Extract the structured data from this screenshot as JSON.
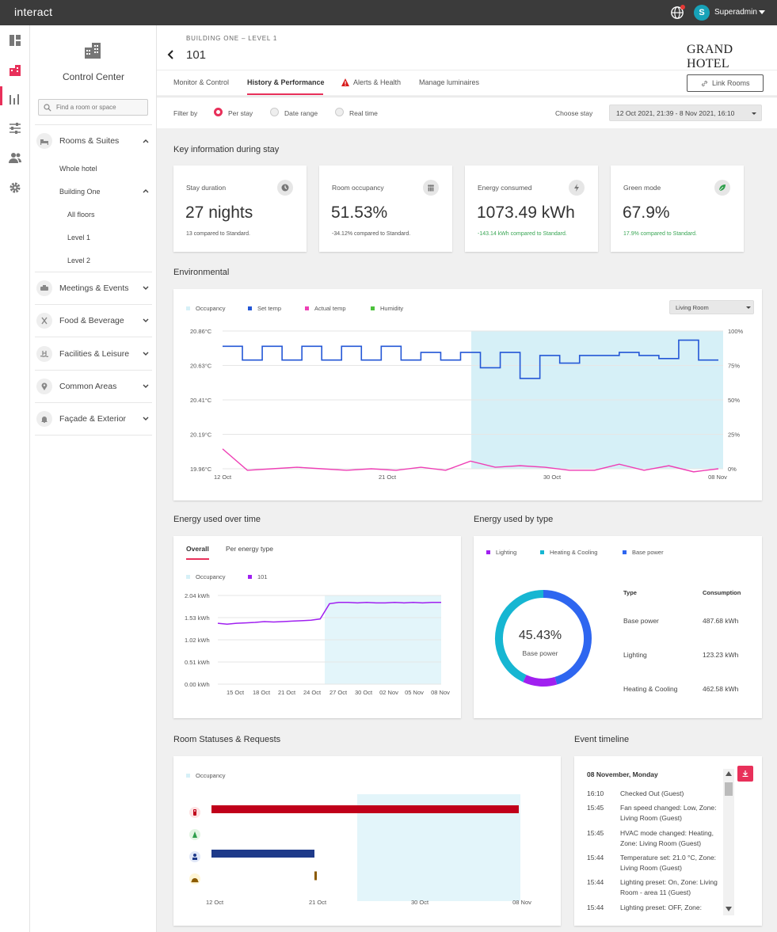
{
  "app": {
    "name": "interact",
    "user_initial": "S",
    "user_name": "Superadmin"
  },
  "sidebar": {
    "title": "Control Center",
    "search_placeholder": "Find a room or space",
    "items": [
      {
        "label": "Rooms & Suites",
        "icon": "bed-icon"
      },
      {
        "label": "Meetings & Events",
        "icon": "meeting-icon"
      },
      {
        "label": "Food & Beverage",
        "icon": "cutlery-icon"
      },
      {
        "label": "Facilities & Leisure",
        "icon": "pool-icon"
      },
      {
        "label": "Common Areas",
        "icon": "location-pin-icon"
      },
      {
        "label": "Façade & Exterior",
        "icon": "bell-icon"
      }
    ],
    "sub_items": [
      "Whole hotel",
      "Building One",
      "All floors",
      "Level 1",
      "Level 2"
    ]
  },
  "header": {
    "breadcrumb": "BUILDING ONE – LEVEL 1",
    "room": "101",
    "logo": "GRAND HOTEL",
    "tabs": [
      "Monitor & Control",
      "History & Performance",
      "Alerts & Health",
      "Manage luminaires"
    ],
    "active_tab": "History & Performance",
    "link_rooms": "Link Rooms"
  },
  "filter": {
    "label": "Filter by",
    "options": [
      "Per stay",
      "Date range",
      "Real time"
    ],
    "selected": "Per stay",
    "choose_stay_label": "Choose stay",
    "stay_value": "12 Oct 2021, 21:39 - 8 Nov 2021, 16:10"
  },
  "key_info": {
    "title": "Key information during stay",
    "cards": [
      {
        "label": "Stay duration",
        "value": "27 nights",
        "note": "13 compared to Standard.",
        "positive": false,
        "icon": "clock-icon"
      },
      {
        "label": "Room occupancy",
        "value": "51.53%",
        "note": "-34.12% compared to Standard.",
        "positive": false,
        "icon": "people-icon"
      },
      {
        "label": "Energy consumed",
        "value": "1073.49 kWh",
        "note": "-143.14 kWh compared to Standard.",
        "positive": true,
        "icon": "lightning-icon"
      },
      {
        "label": "Green mode",
        "value": "67.9%",
        "note": "17.9% compared to Standard.",
        "positive": true,
        "icon": "leaf-icon"
      }
    ]
  },
  "environmental": {
    "title": "Environmental",
    "zone_select": "Living Room",
    "legend": [
      {
        "name": "Occupancy",
        "color": "#d6f0f7"
      },
      {
        "name": "Set temp",
        "color": "#2457d6"
      },
      {
        "name": "Actual temp",
        "color": "#ee3fb5"
      },
      {
        "name": "Humidity",
        "color": "#4cc13c"
      }
    ]
  },
  "energy_time": {
    "title": "Energy used over time",
    "tabs": [
      "Overall",
      "Per energy type"
    ],
    "legend": [
      {
        "name": "Occupancy",
        "color": "#d6f0f7"
      },
      {
        "name": "101",
        "color": "#a020f0"
      }
    ]
  },
  "energy_type": {
    "title": "Energy used by type",
    "legend": [
      {
        "name": "Lighting",
        "color": "#a020f0"
      },
      {
        "name": "Heating & Cooling",
        "color": "#16b6d2"
      },
      {
        "name": "Base power",
        "color": "#2e66f0"
      }
    ],
    "center_value": "45.43%",
    "center_label": "Base power",
    "table_headers": [
      "Type",
      "Consumption"
    ],
    "rows": [
      {
        "type": "Base power",
        "consumption": "487.68 kWh"
      },
      {
        "type": "Lighting",
        "consumption": "123.23 kWh"
      },
      {
        "type": "Heating & Cooling",
        "consumption": "462.58 kWh"
      }
    ]
  },
  "room_status": {
    "title": "Room Statuses & Requests",
    "legend": [
      {
        "name": "Occupancy",
        "color": "#d6f0f7"
      }
    ]
  },
  "event_timeline": {
    "title": "Event timeline",
    "date": "08 November, Monday",
    "events": [
      {
        "time": "16:10",
        "text": "Checked Out (Guest)"
      },
      {
        "time": "15:45",
        "text": "Fan speed changed: Low, Zone: Living Room (Guest)"
      },
      {
        "time": "15:45",
        "text": "HVAC mode changed: Heating, Zone: Living Room (Guest)"
      },
      {
        "time": "15:44",
        "text": "Temperature set: 21.0 °C, Zone: Living Room (Guest)"
      },
      {
        "time": "15:44",
        "text": "Lighting preset: On, Zone: Living Room - area 11 (Guest)"
      },
      {
        "time": "15:44",
        "text": "Lighting preset: OFF, Zone:"
      }
    ]
  },
  "chart_data": [
    {
      "type": "line",
      "x_ticks": [
        "12 Oct",
        "21 Oct",
        "30 Oct",
        "08 Nov"
      ],
      "y_ticks": [
        "20.86°C",
        "20.63°C",
        "20.41°C",
        "20.19°C",
        "19.96°C"
      ],
      "y2_ticks": [
        "100%",
        "75%",
        "50%",
        "25%",
        "0%"
      ],
      "ylim": [
        19.96,
        20.86
      ],
      "occupancy_range": [
        "25 Oct",
        "08 Nov"
      ],
      "series": [
        {
          "name": "Set temp",
          "values": [
            20.76,
            20.67,
            20.76,
            20.67,
            20.76,
            20.67,
            20.76,
            20.67,
            20.76,
            20.67,
            20.72,
            20.67,
            20.72,
            20.62,
            20.72,
            20.55,
            20.7,
            20.65,
            20.7,
            20.7,
            20.72,
            20.7,
            20.68,
            20.8,
            20.67
          ]
        },
        {
          "name": "Actual temp",
          "values": [
            20.09,
            19.95,
            19.96,
            19.97,
            19.96,
            19.95,
            19.96,
            19.95,
            19.97,
            19.95,
            20.01,
            19.97,
            19.98,
            19.97,
            19.95,
            19.95,
            19.99,
            19.95,
            19.98,
            19.94,
            19.96
          ]
        }
      ]
    },
    {
      "type": "line",
      "x_ticks": [
        "15 Oct",
        "18 Oct",
        "21 Oct",
        "24 Oct",
        "27 Oct",
        "30 Oct",
        "02 Nov",
        "05 Nov",
        "08 Nov"
      ],
      "y_ticks": [
        "2.04 kWh",
        "1.53 kWh",
        "1.02 kWh",
        "0.51 kWh",
        "0.00 kWh"
      ],
      "ylim": [
        0,
        2.04
      ],
      "series": [
        {
          "name": "101",
          "values": [
            1.4,
            1.38,
            1.4,
            1.41,
            1.42,
            1.44,
            1.43,
            1.44,
            1.45,
            1.46,
            1.47,
            1.5,
            1.85,
            1.88,
            1.88,
            1.87,
            1.88,
            1.87,
            1.87,
            1.88,
            1.87,
            1.88,
            1.87,
            1.88,
            1.88
          ]
        }
      ]
    },
    {
      "type": "pie",
      "categories": [
        "Base power",
        "Lighting",
        "Heating & Cooling"
      ],
      "values": [
        487.68,
        123.23,
        462.58
      ]
    },
    {
      "type": "bar",
      "x_ticks": [
        "12 Oct",
        "21 Oct",
        "30 Oct",
        "08 Nov"
      ],
      "series": [
        {
          "name": "row-1",
          "color": "#c0001a",
          "start": "12 Oct",
          "end": "08 Nov"
        },
        {
          "name": "row-3",
          "color": "#1e3a8a",
          "start": "12 Oct",
          "end": "21 Oct"
        },
        {
          "name": "row-4",
          "color": "#8b5a00",
          "start": "21 Oct",
          "end": "21 Oct"
        }
      ]
    }
  ]
}
